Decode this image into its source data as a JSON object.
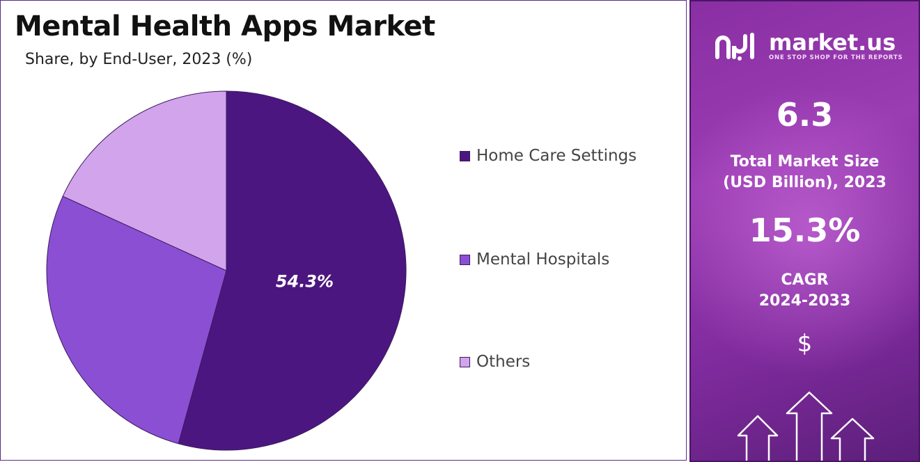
{
  "chart_data": {
    "type": "pie",
    "title": "Mental Health Apps Market",
    "subtitle": "Share, by End-User, 2023 (%)",
    "slices": [
      {
        "label": "Home Care Settings",
        "value": 54.3,
        "color": "#4c1680",
        "data_label": "54.3%"
      },
      {
        "label": "Mental Hospitals",
        "value": 27.5,
        "color": "#8b4fd4",
        "data_label": ""
      },
      {
        "label": "Others",
        "value": 18.2,
        "color": "#d2a4ec",
        "data_label": ""
      }
    ],
    "legend_position": "right"
  },
  "sidebar": {
    "brand_name": "market.us",
    "brand_tagline": "ONE STOP SHOP FOR THE REPORTS",
    "market_size_value": "6.3",
    "market_size_caption_line1": "Total Market Size",
    "market_size_caption_line2": "(USD Billion), 2023",
    "cagr_value": "15.3%",
    "cagr_caption_line1": "CAGR",
    "cagr_caption_line2": "2024-2033",
    "currency_symbol": "$",
    "background_color": "#8a2fa3"
  }
}
